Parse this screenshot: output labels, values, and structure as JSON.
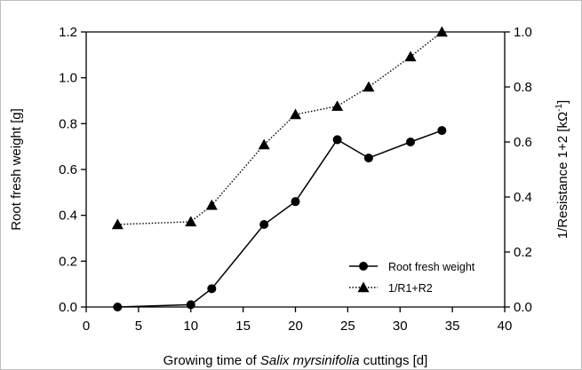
{
  "chart_data": {
    "type": "line",
    "title": "",
    "xlabel": {
      "prefix": "Growing time of ",
      "italic": "Salix myrsinifolia",
      "suffix": " cuttings [d]"
    },
    "ylabel_left": "Root fresh weight [g]",
    "ylabel_right": {
      "main": "1/Resistance 1+2 [kΩ",
      "sup": "-1",
      "close": "]"
    },
    "xlim": [
      0,
      40
    ],
    "ylim_left": [
      0,
      1.2
    ],
    "ylim_right": [
      0,
      1.0
    ],
    "x_ticks": [
      "0",
      "5",
      "10",
      "15",
      "20",
      "25",
      "30",
      "35",
      "40"
    ],
    "y_left_ticks": [
      "0.0",
      "0.2",
      "0.4",
      "0.6",
      "0.8",
      "1.0",
      "1.2"
    ],
    "y_right_ticks": [
      "0.0",
      "0.2",
      "0.4",
      "0.6",
      "0.8",
      "1.0"
    ],
    "grid": false,
    "legend_position": "lower-right",
    "series": [
      {
        "name": "Root fresh weight",
        "axis": "left",
        "marker": "circle",
        "line_style": "solid",
        "color": "#000000",
        "x": [
          3,
          10,
          12,
          17,
          20,
          24,
          27,
          31,
          34
        ],
        "y": [
          0.0,
          0.01,
          0.08,
          0.36,
          0.46,
          0.73,
          0.65,
          0.72,
          0.77
        ]
      },
      {
        "name": "1/R1+R2",
        "axis": "right",
        "marker": "triangle",
        "line_style": "dotted",
        "color": "#000000",
        "x": [
          3,
          10,
          12,
          17,
          20,
          24,
          27,
          31,
          34
        ],
        "y": [
          0.3,
          0.31,
          0.37,
          0.59,
          0.7,
          0.73,
          0.8,
          0.91,
          1.0
        ]
      }
    ]
  }
}
